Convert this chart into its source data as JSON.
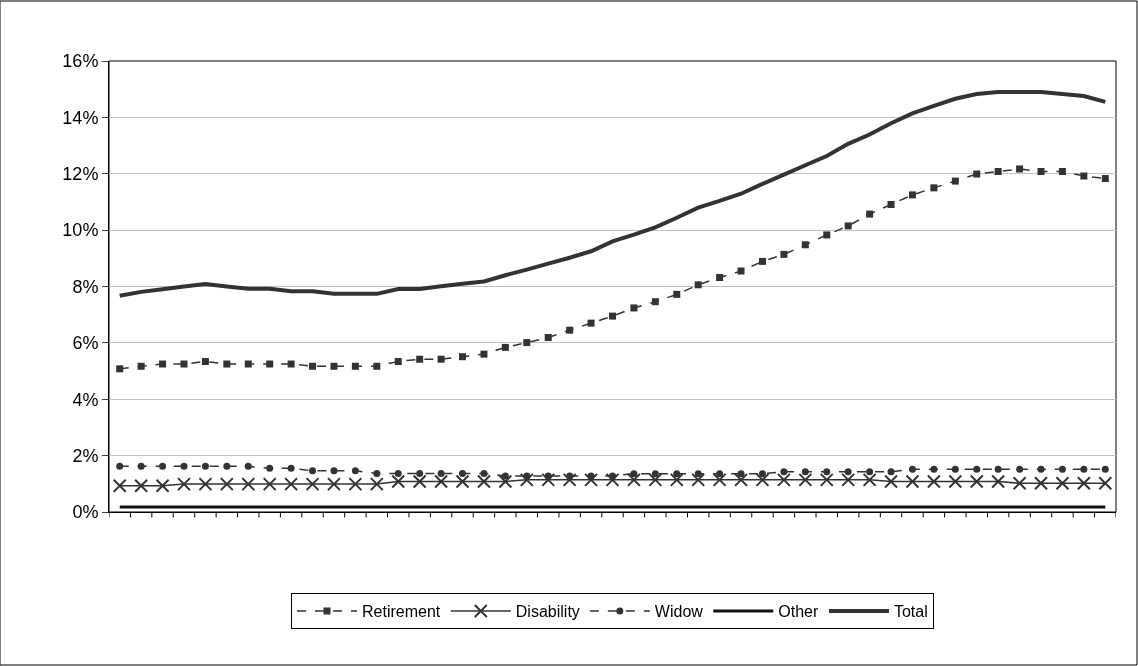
{
  "chart_data": {
    "type": "line",
    "categories": [
      null,
      null,
      null,
      null,
      null,
      null,
      null,
      null,
      null,
      null,
      null,
      null,
      null,
      null,
      null,
      null,
      null,
      null,
      null,
      null,
      null,
      null,
      null,
      null,
      null,
      null,
      null,
      null,
      null,
      null,
      null,
      null,
      null,
      null,
      null,
      null,
      null,
      null,
      null,
      null,
      null,
      null,
      null,
      null,
      null,
      null,
      null
    ],
    "ylim": [
      0,
      16
    ],
    "yticks": [
      {
        "value": 0,
        "label": "0%"
      },
      {
        "value": 2,
        "label": "2%"
      },
      {
        "value": 4,
        "label": "4%"
      },
      {
        "value": 6,
        "label": "6%"
      },
      {
        "value": 8,
        "label": "8%"
      },
      {
        "value": 10,
        "label": "10%"
      },
      {
        "value": 12,
        "label": "12%"
      },
      {
        "value": 14,
        "label": "14%"
      },
      {
        "value": 16,
        "label": "16%"
      }
    ],
    "grid": "y",
    "legend": "bottom",
    "series": [
      {
        "name": "Retirement",
        "color": "#333333",
        "marker": "square",
        "line_style": "dashed",
        "values": [
          5.08,
          5.17,
          5.25,
          5.25,
          5.34,
          5.25,
          5.25,
          5.25,
          5.25,
          5.17,
          5.17,
          5.17,
          5.17,
          5.34,
          5.42,
          5.42,
          5.51,
          5.6,
          5.84,
          6.01,
          6.19,
          6.45,
          6.7,
          6.95,
          7.24,
          7.46,
          7.72,
          8.06,
          8.32,
          8.55,
          8.89,
          9.14,
          9.48,
          9.83,
          10.15,
          10.57,
          10.91,
          11.25,
          11.5,
          11.74,
          11.99,
          12.08,
          12.17,
          12.08,
          12.08,
          11.92,
          11.83
        ]
      },
      {
        "name": "Disability",
        "color": "#333333",
        "marker": "cross",
        "line_style": "solid",
        "values": [
          0.93,
          0.93,
          0.93,
          0.99,
          0.99,
          0.99,
          0.99,
          0.99,
          0.99,
          0.99,
          0.99,
          0.99,
          0.99,
          1.08,
          1.08,
          1.08,
          1.08,
          1.08,
          1.08,
          1.14,
          1.14,
          1.14,
          1.14,
          1.14,
          1.14,
          1.14,
          1.14,
          1.14,
          1.14,
          1.14,
          1.14,
          1.14,
          1.14,
          1.14,
          1.14,
          1.14,
          1.08,
          1.08,
          1.08,
          1.08,
          1.08,
          1.08,
          1.02,
          1.02,
          1.02,
          1.02,
          1.02
        ]
      },
      {
        "name": "Widow",
        "color": "#333333",
        "marker": "circle",
        "line_style": "dashed",
        "values": [
          1.62,
          1.62,
          1.62,
          1.62,
          1.62,
          1.62,
          1.62,
          1.55,
          1.55,
          1.46,
          1.46,
          1.46,
          1.37,
          1.37,
          1.37,
          1.37,
          1.37,
          1.37,
          1.28,
          1.28,
          1.28,
          1.28,
          1.28,
          1.28,
          1.36,
          1.36,
          1.36,
          1.36,
          1.36,
          1.36,
          1.36,
          1.43,
          1.43,
          1.43,
          1.43,
          1.43,
          1.43,
          1.52,
          1.52,
          1.52,
          1.52,
          1.52,
          1.52,
          1.52,
          1.52,
          1.52,
          1.52
        ]
      },
      {
        "name": "Other",
        "color": "#111111",
        "marker": "none",
        "line_style": "solid",
        "values": [
          0.18,
          0.18,
          0.18,
          0.18,
          0.18,
          0.18,
          0.18,
          0.18,
          0.18,
          0.18,
          0.18,
          0.18,
          0.18,
          0.18,
          0.18,
          0.18,
          0.18,
          0.18,
          0.18,
          0.18,
          0.18,
          0.18,
          0.18,
          0.18,
          0.18,
          0.18,
          0.18,
          0.18,
          0.18,
          0.18,
          0.18,
          0.18,
          0.18,
          0.18,
          0.18,
          0.18,
          0.18,
          0.18,
          0.18,
          0.18,
          0.18,
          0.18,
          0.18,
          0.18,
          0.18,
          0.18,
          0.18
        ]
      },
      {
        "name": "Total",
        "color": "#333333",
        "marker": "none",
        "line_style": "solid",
        "values": [
          7.67,
          7.81,
          7.9,
          8.0,
          8.09,
          8.0,
          7.92,
          7.92,
          7.83,
          7.83,
          7.74,
          7.74,
          7.74,
          7.91,
          7.91,
          8.01,
          8.1,
          8.18,
          8.4,
          8.6,
          8.81,
          9.02,
          9.25,
          9.6,
          9.84,
          10.1,
          10.44,
          10.8,
          11.04,
          11.29,
          11.64,
          11.97,
          12.3,
          12.63,
          13.06,
          13.39,
          13.79,
          14.14,
          14.41,
          14.66,
          14.83,
          14.9,
          14.9,
          14.9,
          14.83,
          14.76,
          14.55
        ]
      }
    ]
  }
}
